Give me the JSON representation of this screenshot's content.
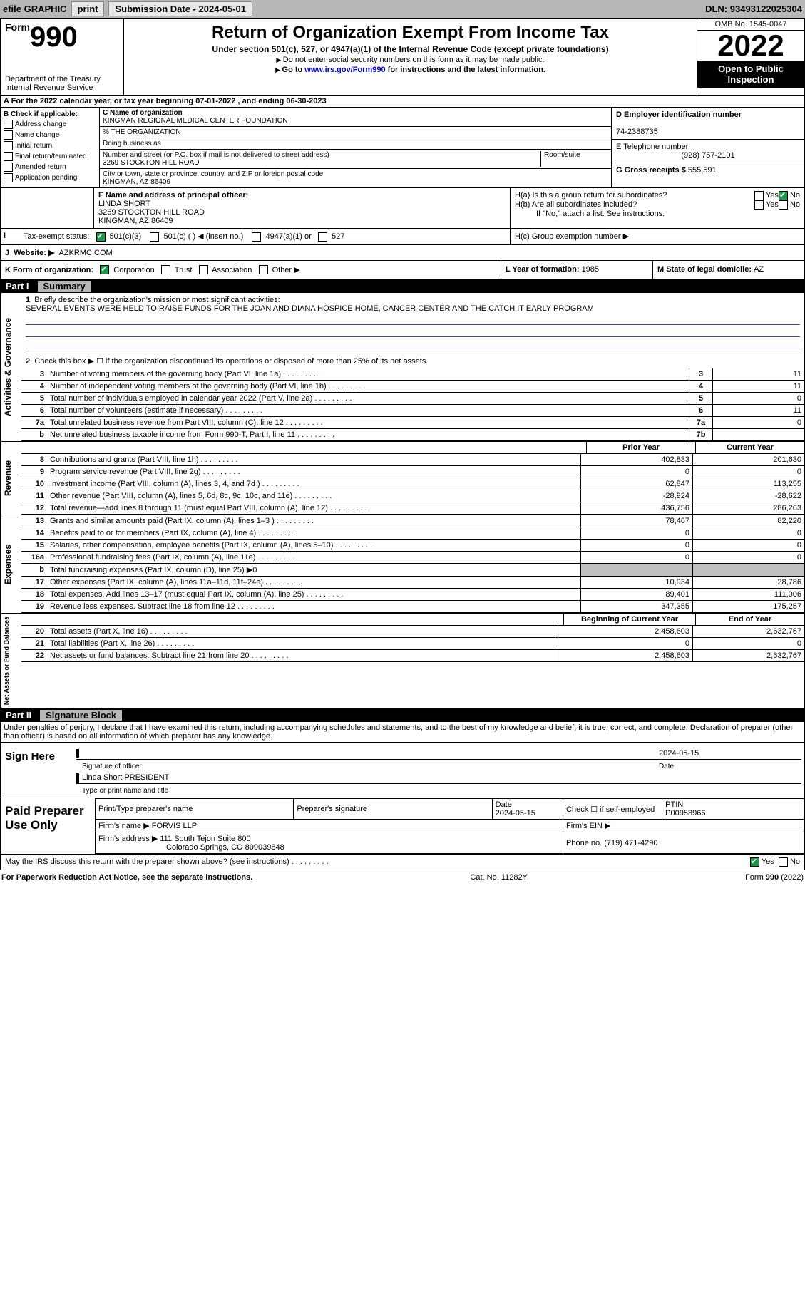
{
  "topbar": {
    "efile": "efile GRAPHIC",
    "print": "print",
    "subdate_label": "Submission Date - ",
    "subdate": "2024-05-01",
    "dln_label": "DLN: ",
    "dln": "93493122025304"
  },
  "header": {
    "form_prefix": "Form",
    "form_num": "990",
    "dept": "Department of the Treasury",
    "irs": "Internal Revenue Service",
    "title": "Return of Organization Exempt From Income Tax",
    "subtitle": "Under section 501(c), 527, or 4947(a)(1) of the Internal Revenue Code (except private foundations)",
    "note1": "Do not enter social security numbers on this form as it may be made public.",
    "note2_pre": "Go to ",
    "note2_link": "www.irs.gov/Form990",
    "note2_post": " for instructions and the latest information.",
    "omb": "OMB No. 1545-0047",
    "year": "2022",
    "opi": "Open to Public Inspection"
  },
  "periodA": {
    "text": "For the 2022 calendar year, or tax year beginning ",
    "begin": "07-01-2022",
    "mid": " , and ending ",
    "end": "06-30-2023"
  },
  "boxB": {
    "label": "B Check if applicable:",
    "opts": [
      "Address change",
      "Name change",
      "Initial return",
      "Final return/terminated",
      "Amended return",
      "Application pending"
    ]
  },
  "boxC": {
    "name_lbl": "C Name of organization",
    "name": "KINGMAN REGIONAL MEDICAL CENTER FOUNDATION",
    "care": "% THE ORGANIZATION",
    "dba_lbl": "Doing business as",
    "addr_lbl": "Number and street (or P.O. box if mail is not delivered to street address)",
    "room_lbl": "Room/suite",
    "addr": "3269 STOCKTON HILL ROAD",
    "city_lbl": "City or town, state or province, country, and ZIP or foreign postal code",
    "city": "KINGMAN, AZ  86409"
  },
  "boxD": {
    "lbl": "D Employer identification number",
    "val": "74-2388735"
  },
  "boxE": {
    "lbl": "E Telephone number",
    "val": "(928) 757-2101"
  },
  "boxG": {
    "lbl": "G Gross receipts $ ",
    "val": "555,591"
  },
  "boxF": {
    "lbl": "F  Name and address of principal officer:",
    "name": "LINDA SHORT",
    "addr": "3269 STOCKTON HILL ROAD",
    "city": "KINGMAN, AZ  86409"
  },
  "boxH": {
    "a": "H(a)  Is this a group return for subordinates?",
    "b": "H(b)  Are all subordinates included?",
    "bnote": "If \"No,\" attach a list. See instructions.",
    "c": "H(c)  Group exemption number ▶",
    "yes": "Yes",
    "no": "No"
  },
  "boxI": {
    "lbl": "Tax-exempt status:",
    "o1": "501(c)(3)",
    "o2": "501(c) (  ) ◀ (insert no.)",
    "o3": "4947(a)(1) or",
    "o4": "527"
  },
  "boxJ": {
    "lbl": "Website: ▶",
    "val": "AZKRMC.COM"
  },
  "boxK": {
    "lbl": "K Form of organization:",
    "o1": "Corporation",
    "o2": "Trust",
    "o3": "Association",
    "o4": "Other ▶"
  },
  "boxL": {
    "lbl": "L Year of formation: ",
    "val": "1985"
  },
  "boxM": {
    "lbl": "M State of legal domicile: ",
    "val": "AZ"
  },
  "part1": {
    "num": "Part I",
    "title": "Summary"
  },
  "actgov": {
    "label": "Activities & Governance",
    "l1": "Briefly describe the organization's mission or most significant activities:",
    "mission": "SEVERAL EVENTS WERE HELD TO RAISE FUNDS FOR THE JOAN AND DIANA HOSPICE HOME, CANCER CENTER AND THE CATCH IT EARLY PROGRAM",
    "l2": "Check this box ▶ ☐  if the organization discontinued its operations or disposed of more than 25% of its net assets.",
    "lines": [
      {
        "n": "3",
        "t": "Number of voting members of the governing body (Part VI, line 1a)",
        "bx": "3",
        "v": "11"
      },
      {
        "n": "4",
        "t": "Number of independent voting members of the governing body (Part VI, line 1b)",
        "bx": "4",
        "v": "11"
      },
      {
        "n": "5",
        "t": "Total number of individuals employed in calendar year 2022 (Part V, line 2a)",
        "bx": "5",
        "v": "0"
      },
      {
        "n": "6",
        "t": "Total number of volunteers (estimate if necessary)",
        "bx": "6",
        "v": "11"
      },
      {
        "n": "7a",
        "t": "Total unrelated business revenue from Part VIII, column (C), line 12",
        "bx": "7a",
        "v": "0"
      },
      {
        "n": "b",
        "t": "Net unrelated business taxable income from Form 990-T, Part I, line 11",
        "bx": "7b",
        "v": ""
      }
    ]
  },
  "revenue": {
    "label": "Revenue",
    "hdr_prior": "Prior Year",
    "hdr_curr": "Current Year",
    "lines": [
      {
        "n": "8",
        "t": "Contributions and grants (Part VIII, line 1h)",
        "p": "402,833",
        "c": "201,630"
      },
      {
        "n": "9",
        "t": "Program service revenue (Part VIII, line 2g)",
        "p": "0",
        "c": "0"
      },
      {
        "n": "10",
        "t": "Investment income (Part VIII, column (A), lines 3, 4, and 7d )",
        "p": "62,847",
        "c": "113,255"
      },
      {
        "n": "11",
        "t": "Other revenue (Part VIII, column (A), lines 5, 6d, 8c, 9c, 10c, and 11e)",
        "p": "-28,924",
        "c": "-28,622"
      },
      {
        "n": "12",
        "t": "Total revenue—add lines 8 through 11 (must equal Part VIII, column (A), line 12)",
        "p": "436,756",
        "c": "286,263"
      }
    ]
  },
  "expenses": {
    "label": "Expenses",
    "lines": [
      {
        "n": "13",
        "t": "Grants and similar amounts paid (Part IX, column (A), lines 1–3 )",
        "p": "78,467",
        "c": "82,220"
      },
      {
        "n": "14",
        "t": "Benefits paid to or for members (Part IX, column (A), line 4)",
        "p": "0",
        "c": "0"
      },
      {
        "n": "15",
        "t": "Salaries, other compensation, employee benefits (Part IX, column (A), lines 5–10)",
        "p": "0",
        "c": "0"
      },
      {
        "n": "16a",
        "t": "Professional fundraising fees (Part IX, column (A), line 11e)",
        "p": "0",
        "c": "0"
      },
      {
        "n": "b",
        "t": "Total fundraising expenses (Part IX, column (D), line 25) ▶0",
        "p": "",
        "c": "",
        "shade": true
      },
      {
        "n": "17",
        "t": "Other expenses (Part IX, column (A), lines 11a–11d, 11f–24e)",
        "p": "10,934",
        "c": "28,786"
      },
      {
        "n": "18",
        "t": "Total expenses. Add lines 13–17 (must equal Part IX, column (A), line 25)",
        "p": "89,401",
        "c": "111,006"
      },
      {
        "n": "19",
        "t": "Revenue less expenses. Subtract line 18 from line 12",
        "p": "347,355",
        "c": "175,257"
      }
    ]
  },
  "netassets": {
    "label": "Net Assets or Fund Balances",
    "hdr_begin": "Beginning of Current Year",
    "hdr_end": "End of Year",
    "lines": [
      {
        "n": "20",
        "t": "Total assets (Part X, line 16)",
        "p": "2,458,603",
        "c": "2,632,767"
      },
      {
        "n": "21",
        "t": "Total liabilities (Part X, line 26)",
        "p": "0",
        "c": "0"
      },
      {
        "n": "22",
        "t": "Net assets or fund balances. Subtract line 21 from line 20",
        "p": "2,458,603",
        "c": "2,632,767"
      }
    ]
  },
  "part2": {
    "num": "Part II",
    "title": "Signature Block"
  },
  "declare": "Under penalties of perjury, I declare that I have examined this return, including accompanying schedules and statements, and to the best of my knowledge and belief, it is true, correct, and complete. Declaration of preparer (other than officer) is based on all information of which preparer has any knowledge.",
  "sign": {
    "lbl": "Sign Here",
    "sig_lbl": "Signature of officer",
    "date_lbl": "Date",
    "date": "2024-05-15",
    "name": "Linda Short  PRESIDENT",
    "name_lbl": "Type or print name and title"
  },
  "prep": {
    "lbl": "Paid Preparer Use Only",
    "h1": "Print/Type preparer's name",
    "h2": "Preparer's signature",
    "h3": "Date",
    "h3v": "2024-05-15",
    "h4": "Check ☐ if self-employed",
    "h5": "PTIN",
    "h5v": "P00958966",
    "firm_lbl": "Firm's name    ▶ ",
    "firm": "FORVIS LLP",
    "ein_lbl": "Firm's EIN ▶",
    "addr_lbl": "Firm's address ▶ ",
    "addr": "111 South Tejon Suite 800",
    "addr2": "Colorado Springs, CO  809039848",
    "phone_lbl": "Phone no. ",
    "phone": "(719) 471-4290"
  },
  "discuss": {
    "q": "May the IRS discuss this return with the preparer shown above? (see instructions)",
    "yes": "Yes",
    "no": "No"
  },
  "footer": {
    "pra": "For Paperwork Reduction Act Notice, see the separate instructions.",
    "cat": "Cat. No. 11282Y",
    "form": "Form 990 (2022)"
  }
}
